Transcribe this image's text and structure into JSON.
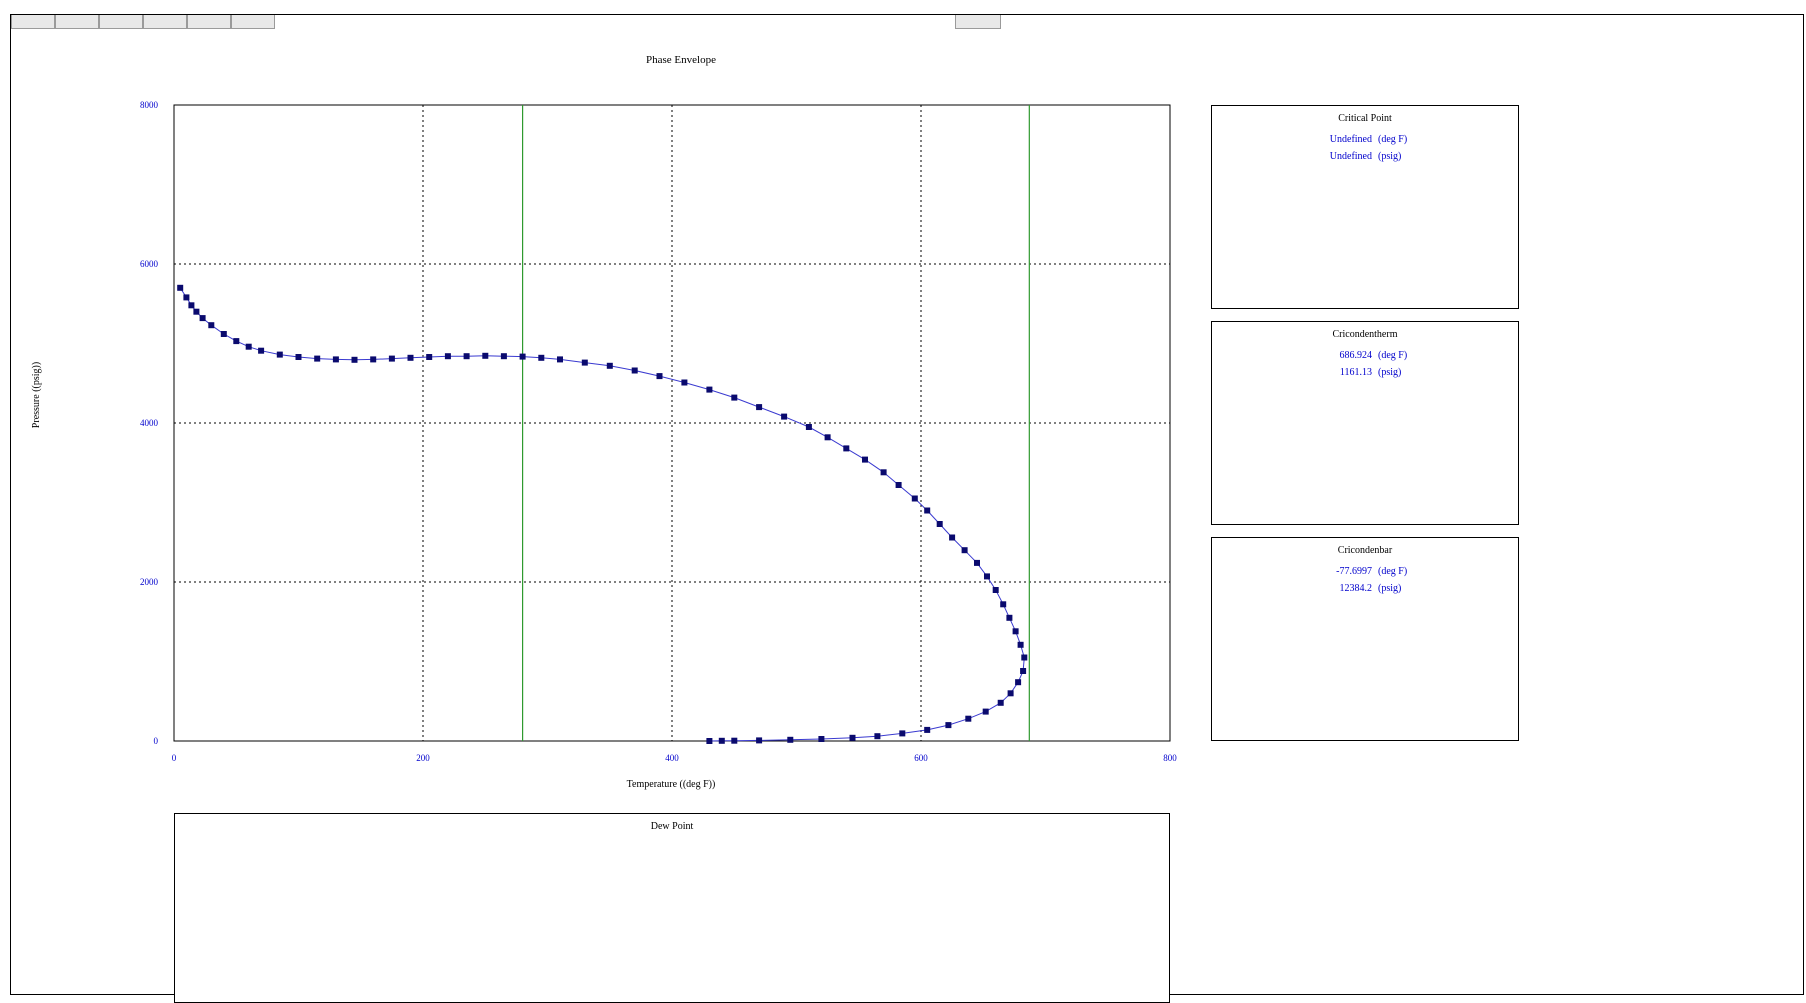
{
  "window": {
    "tabs_left": 6,
    "tabs_right": 1
  },
  "chart_data": {
    "type": "scatter",
    "title": "Phase Envelope",
    "xlabel": "Temperature ((deg F))",
    "ylabel": "Pressure ((psig))",
    "xlim": [
      0,
      800
    ],
    "ylim": [
      0,
      8000
    ],
    "xticks": [
      0,
      200,
      400,
      600,
      800
    ],
    "yticks": [
      0,
      2000,
      4000,
      6000,
      8000
    ],
    "grid": true,
    "vlines": [
      280,
      687
    ],
    "colors": {
      "series": "#0a0a6e",
      "line": "#3a3ad0",
      "ticks": "#0000cc",
      "vlines": "#2e9a2e",
      "grid": "#000000"
    },
    "series": [
      {
        "points": [
          [
            5,
            5700
          ],
          [
            10,
            5580
          ],
          [
            14,
            5480
          ],
          [
            18,
            5400
          ],
          [
            23,
            5320
          ],
          [
            30,
            5230
          ],
          [
            40,
            5120
          ],
          [
            50,
            5030
          ],
          [
            60,
            4960
          ],
          [
            70,
            4910
          ],
          [
            85,
            4860
          ],
          [
            100,
            4830
          ],
          [
            115,
            4810
          ],
          [
            130,
            4800
          ],
          [
            145,
            4795
          ],
          [
            160,
            4800
          ],
          [
            175,
            4810
          ],
          [
            190,
            4820
          ],
          [
            205,
            4830
          ],
          [
            220,
            4840
          ],
          [
            235,
            4840
          ],
          [
            250,
            4845
          ],
          [
            265,
            4840
          ],
          [
            280,
            4835
          ],
          [
            295,
            4820
          ],
          [
            310,
            4800
          ],
          [
            330,
            4760
          ],
          [
            350,
            4720
          ],
          [
            370,
            4660
          ],
          [
            390,
            4590
          ],
          [
            410,
            4510
          ],
          [
            430,
            4420
          ],
          [
            450,
            4320
          ],
          [
            470,
            4200
          ],
          [
            490,
            4080
          ],
          [
            510,
            3950
          ],
          [
            525,
            3820
          ],
          [
            540,
            3680
          ],
          [
            555,
            3540
          ],
          [
            570,
            3380
          ],
          [
            582,
            3220
          ],
          [
            595,
            3050
          ],
          [
            605,
            2900
          ],
          [
            615,
            2730
          ],
          [
            625,
            2560
          ],
          [
            635,
            2400
          ],
          [
            645,
            2240
          ],
          [
            653,
            2070
          ],
          [
            660,
            1900
          ],
          [
            666,
            1720
          ],
          [
            671,
            1550
          ],
          [
            676,
            1380
          ],
          [
            680,
            1210
          ],
          [
            683,
            1050
          ],
          [
            682,
            880
          ],
          [
            678,
            740
          ],
          [
            672,
            600
          ],
          [
            664,
            480
          ],
          [
            652,
            370
          ],
          [
            638,
            280
          ],
          [
            622,
            200
          ],
          [
            605,
            140
          ],
          [
            585,
            95
          ],
          [
            565,
            60
          ],
          [
            545,
            40
          ],
          [
            520,
            25
          ],
          [
            495,
            15
          ],
          [
            470,
            8
          ],
          [
            450,
            4
          ],
          [
            440,
            2
          ],
          [
            430,
            0
          ]
        ]
      }
    ]
  },
  "panels": {
    "critical_point": {
      "title": "Critical Point",
      "temp_value": "Undefined",
      "temp_unit": "(deg F)",
      "pres_value": "Undefined",
      "pres_unit": "(psig)"
    },
    "cricondentherm": {
      "title": "Cricondentherm",
      "temp_value": "686.924",
      "temp_unit": "(deg F)",
      "pres_value": "1161.13",
      "pres_unit": "(psig)"
    },
    "cricondenbar": {
      "title": "Cricondenbar",
      "temp_value": "-77.6997",
      "temp_unit": "(deg F)",
      "pres_value": "12384.2",
      "pres_unit": "(psig)"
    },
    "dew_point": {
      "title": "Dew Point"
    }
  }
}
